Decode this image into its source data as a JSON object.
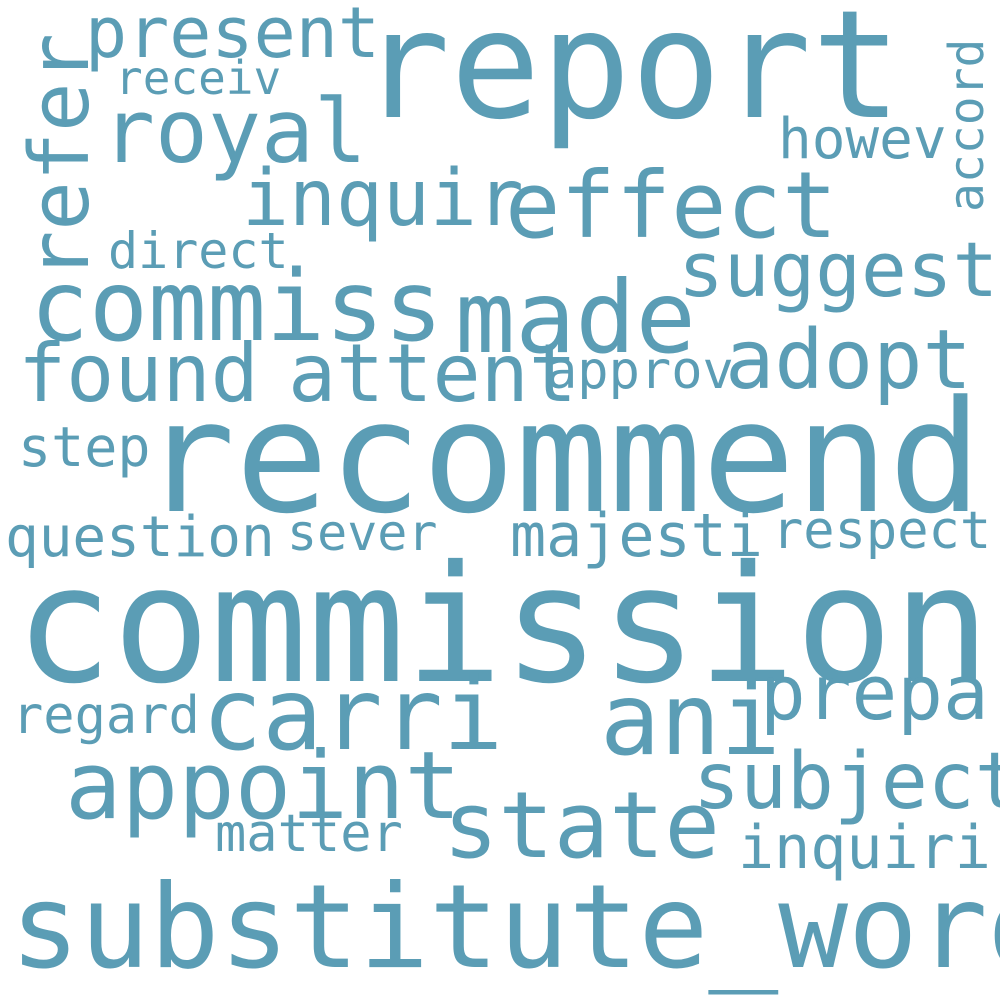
{
  "word_color": "#5b9db5",
  "background_color": "#ffffff",
  "words": [
    {
      "name": "word-report",
      "text": "report"
    },
    {
      "name": "word-present",
      "text": "present"
    },
    {
      "name": "word-receiv",
      "text": "receiv"
    },
    {
      "name": "word-royal",
      "text": "royal"
    },
    {
      "name": "word-refer",
      "text": "refer"
    },
    {
      "name": "word-accord",
      "text": "accord"
    },
    {
      "name": "word-howev",
      "text": "howev"
    },
    {
      "name": "word-inquir",
      "text": "inquir"
    },
    {
      "name": "word-effect",
      "text": "effect"
    },
    {
      "name": "word-direct",
      "text": "direct"
    },
    {
      "name": "word-suggest",
      "text": "suggest"
    },
    {
      "name": "word-commiss",
      "text": "commiss"
    },
    {
      "name": "word-made",
      "text": "made"
    },
    {
      "name": "word-found",
      "text": "found"
    },
    {
      "name": "word-attent",
      "text": "attent"
    },
    {
      "name": "word-approv",
      "text": "approv"
    },
    {
      "name": "word-adopt",
      "text": "adopt"
    },
    {
      "name": "word-step",
      "text": "step"
    },
    {
      "name": "word-recommend",
      "text": "recommend"
    },
    {
      "name": "word-question",
      "text": "question"
    },
    {
      "name": "word-sever",
      "text": "sever"
    },
    {
      "name": "word-majesti",
      "text": "majesti"
    },
    {
      "name": "word-respect",
      "text": "respect"
    },
    {
      "name": "word-commission",
      "text": "commission"
    },
    {
      "name": "word-carri",
      "text": "carri"
    },
    {
      "name": "word-ani",
      "text": "ani"
    },
    {
      "name": "word-prepar",
      "text": "prepar"
    },
    {
      "name": "word-regard",
      "text": "regard"
    },
    {
      "name": "word-appoint",
      "text": "appoint"
    },
    {
      "name": "word-subject",
      "text": "subject"
    },
    {
      "name": "word-state",
      "text": "state"
    },
    {
      "name": "word-matter",
      "text": "matter"
    },
    {
      "name": "word-inquiri",
      "text": "inquiri"
    },
    {
      "name": "word-substitute-word",
      "text": "substitute_word"
    }
  ]
}
